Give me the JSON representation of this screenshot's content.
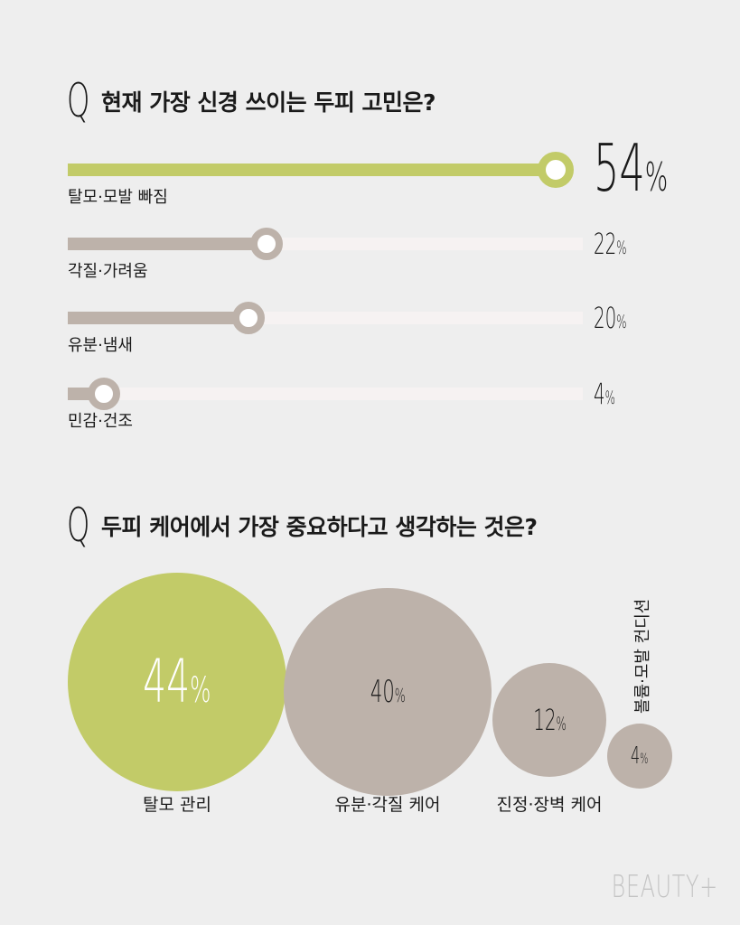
{
  "q_mark": "Q",
  "q1": {
    "question": "현재 가장 신경 쓰이는 두피 고민은?"
  },
  "q2": {
    "question": "두피 케어에서 가장 중요하다고 생각하는 것은?"
  },
  "percent_symbol": "%",
  "colors": {
    "accent": "#c2cb68",
    "neutral": "#bdb2aa",
    "track": "#f6f2f2",
    "background": "#eeeeee"
  },
  "chart_data": [
    {
      "type": "bar",
      "categories": [
        "탈모·모발 빠짐",
        "각질·가려움",
        "유분·냄새",
        "민감·건조"
      ],
      "values": [
        54,
        22,
        20,
        4
      ],
      "value_labels": [
        "54",
        "22",
        "20",
        "4"
      ],
      "highlight_index": 0,
      "title": "현재 가장 신경 쓰이는 두피 고민은?"
    },
    {
      "type": "bubble",
      "categories": [
        "탈모 관리",
        "유분·각질 케어",
        "진정·장벽 케어",
        "볼륨·모발 컨디션"
      ],
      "values": [
        44,
        40,
        12,
        4
      ],
      "value_labels": [
        "44",
        "40",
        "12",
        "4"
      ],
      "highlight_index": 0,
      "title": "두피 케어에서 가장 중요하다고 생각하는 것은?"
    }
  ],
  "brand": "BEAUTY+"
}
